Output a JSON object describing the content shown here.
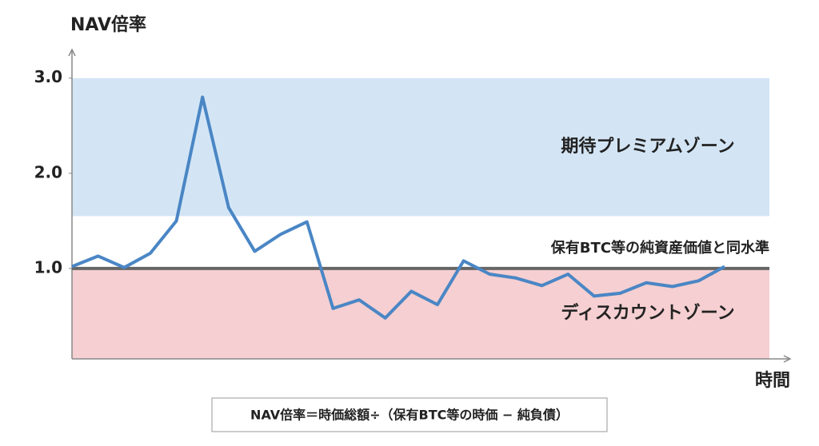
{
  "chart_data": {
    "type": "line",
    "y_label": "NAV倍率",
    "x_label": "時間",
    "values": [
      1.02,
      1.13,
      1.01,
      1.16,
      1.5,
      2.8,
      1.64,
      1.18,
      1.36,
      1.49,
      0.58,
      0.67,
      0.48,
      0.76,
      0.62,
      1.08,
      0.94,
      0.9,
      0.82,
      0.94,
      0.71,
      0.74,
      0.85,
      0.81,
      0.87,
      1.02
    ],
    "color": "#4a86c5",
    "ylim": [
      0.05,
      3.3
    ],
    "yticks": [
      {
        "value": 1,
        "label": "1.0"
      },
      {
        "value": 2,
        "label": "2.0"
      },
      {
        "value": 3,
        "label": "3.0"
      }
    ],
    "zones": [
      {
        "label": "期待プレミアムゾーン",
        "from": 1.55,
        "to": 3.0,
        "color": "#d3e5f5"
      },
      {
        "label": "ディスカウントゾーン",
        "from": 0.05,
        "to": 1.0,
        "color": "#f5cfd1"
      }
    ],
    "reference_line": {
      "value": 1.0,
      "label": "保有BTC等の純資産価値と同水準",
      "color": "#666666"
    },
    "formula": "NAV倍率＝時価総額÷（保有BTC等の時価 − 純負債）"
  }
}
